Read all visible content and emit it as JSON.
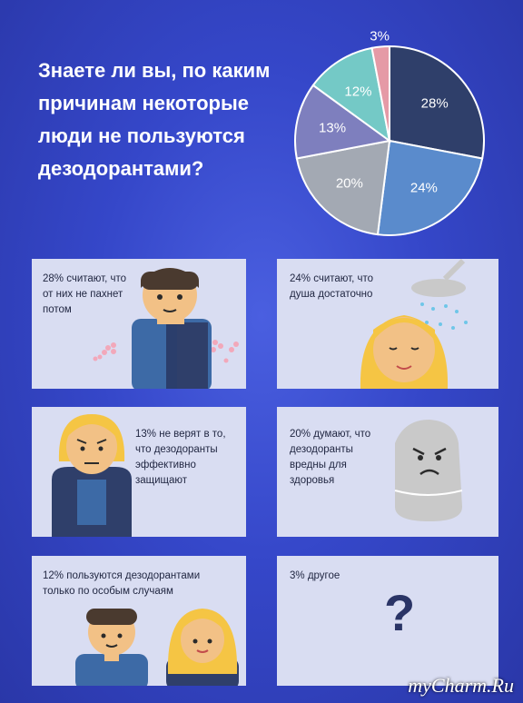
{
  "title": "Знаете ли вы, по каким причинам некоторые люди не пользуются дезодорантами?",
  "chart_data": {
    "type": "pie",
    "values": [
      28,
      24,
      20,
      13,
      12,
      3
    ],
    "labels": [
      "28%",
      "24%",
      "20%",
      "13%",
      "12%",
      "3%"
    ],
    "colors": [
      "#2f3f6a",
      "#5a8bcc",
      "#a3a9b3",
      "#7e7fbe",
      "#74c9c6",
      "#e59aa6"
    ]
  },
  "cards": {
    "c1": "28% считают, что от них не пахнет потом",
    "c2": "24% считают, что душа достаточно",
    "c3": "13% не верят в то, что дезодоранты эффективно защищают",
    "c4": "20% думают, что дезодоранты вредны для здоровья",
    "c5": "12% пользуются дезодорантами только по особым случаям",
    "c6": "3% другое",
    "question_mark": "?"
  },
  "watermark": "myCharm.Ru"
}
